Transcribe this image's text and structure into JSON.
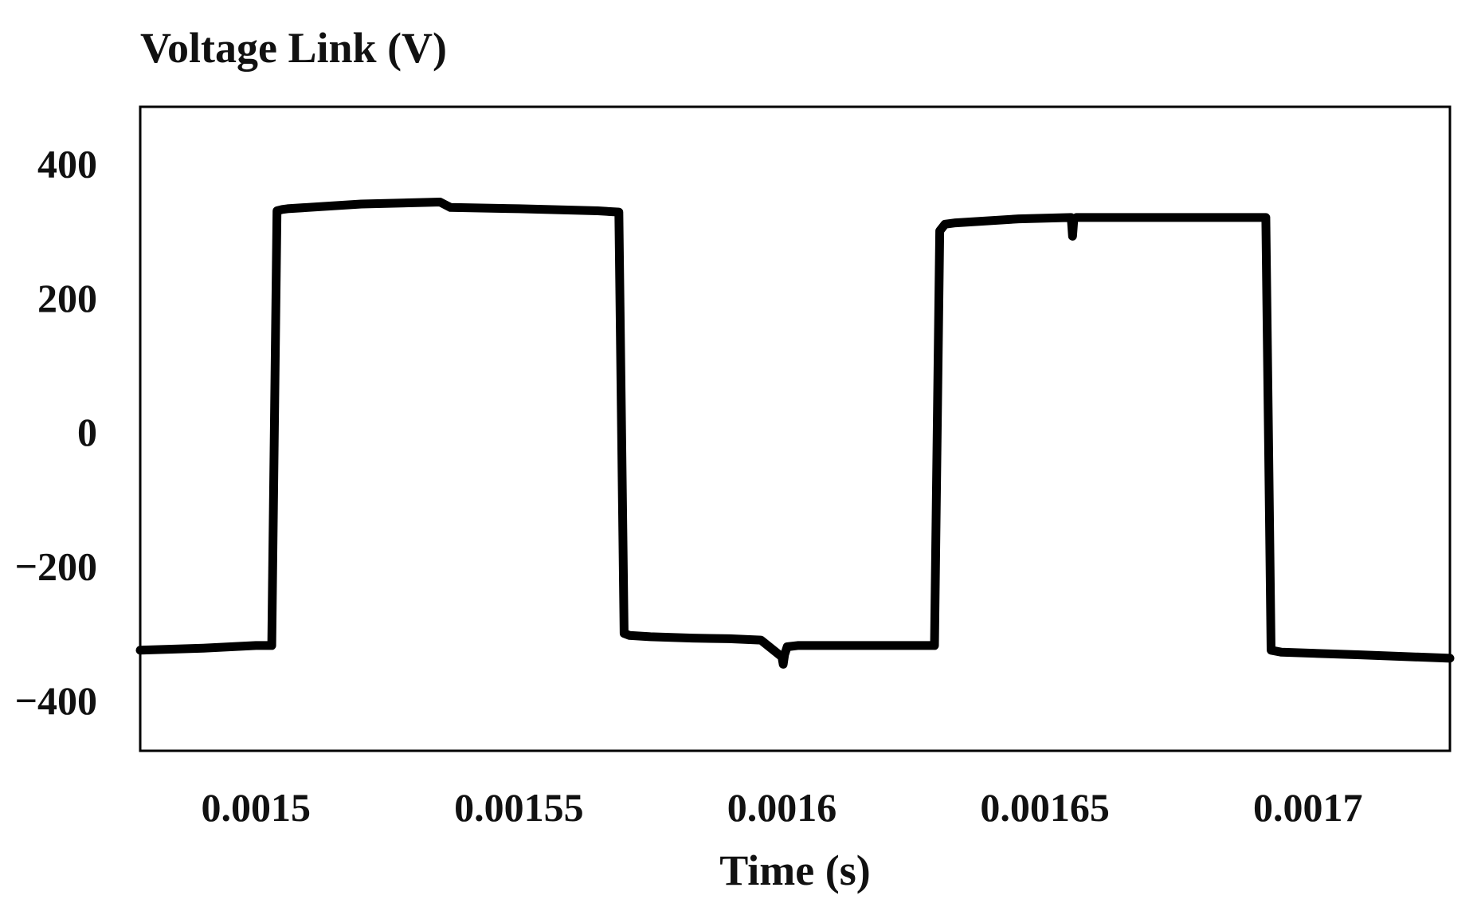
{
  "chart_data": {
    "type": "line",
    "title": "",
    "ylabel": "Voltage Link (V)",
    "xlabel": "Time (s)",
    "xlim": [
      0.001478,
      0.001727
    ],
    "ylim": [
      -475,
      485
    ],
    "x_ticks": [
      0.0015,
      0.00155,
      0.0016,
      0.00165,
      0.0017
    ],
    "x_tick_labels": [
      "0.0015",
      "0.00155",
      "0.0016",
      "0.00165",
      "0.0017"
    ],
    "y_ticks": [
      400,
      200,
      0,
      -200,
      -400
    ],
    "y_tick_labels": [
      "400",
      "200",
      "0",
      "−200",
      "−400"
    ],
    "grid": false,
    "line_color": "#000000",
    "series": [
      {
        "name": "",
        "x": [
          0.001478,
          0.00149,
          0.0015,
          0.001503,
          0.001504,
          0.001505,
          0.001506,
          0.00152,
          0.001535,
          0.001537,
          0.00155,
          0.001565,
          0.001569,
          0.00157,
          0.001571,
          0.001575,
          0.001583,
          0.00159,
          0.001596,
          0.0016,
          0.00160025,
          0.0016005,
          0.001601,
          0.001603,
          0.00161,
          0.00162,
          0.001629,
          0.00163,
          0.001631,
          0.001633,
          0.001645,
          0.001655,
          0.00165525,
          0.0016555,
          0.001656,
          0.00166,
          0.001675,
          0.001692,
          0.001693,
          0.001695,
          0.00171,
          0.001727
        ],
        "y": [
          -325,
          -322,
          -318,
          -318,
          330,
          332,
          333,
          340,
          343,
          335,
          333,
          330,
          328,
          -300,
          -303,
          -305,
          -307,
          -308,
          -310,
          -335,
          -346,
          -332,
          -320,
          -318,
          -318,
          -318,
          -318,
          300,
          310,
          312,
          318,
          320,
          292,
          318,
          320,
          320,
          320,
          320,
          -325,
          -328,
          -332,
          -337
        ]
      }
    ]
  }
}
